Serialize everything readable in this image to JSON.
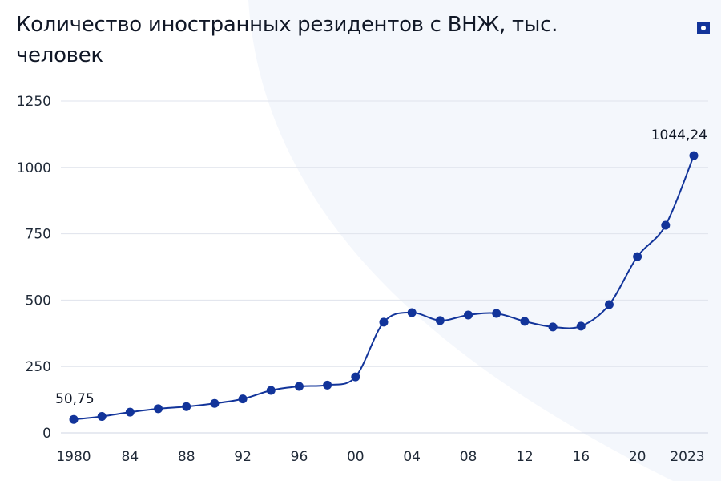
{
  "title": "Количество иностранных резидентов с ВНЖ, тыс. человек",
  "menu_icon": "menu-dot-icon",
  "colors": {
    "line": "#12349a",
    "grid": "#dfe3ec",
    "text": "#111827"
  },
  "chart_data": {
    "type": "line",
    "title": "Количество иностранных резидентов с ВНЖ, тыс. человек",
    "categories": [
      "1980",
      "1982",
      "1984",
      "1986",
      "1988",
      "1990",
      "1992",
      "1994",
      "1996",
      "1998",
      "2000",
      "2002",
      "2004",
      "2006",
      "2008",
      "2010",
      "2012",
      "2014",
      "2016",
      "2018",
      "2020",
      "2022",
      "2023"
    ],
    "values": [
      50.75,
      62,
      78,
      91,
      99,
      111,
      128,
      160,
      175,
      180,
      211,
      417,
      453,
      423,
      444,
      450,
      420,
      399,
      402,
      483,
      664,
      782,
      1044.24
    ],
    "x_tick_labels": [
      {
        "category": "1980",
        "label": "1980"
      },
      {
        "category": "1984",
        "label": "84"
      },
      {
        "category": "1988",
        "label": "88"
      },
      {
        "category": "1992",
        "label": "92"
      },
      {
        "category": "1996",
        "label": "96"
      },
      {
        "category": "2000",
        "label": "00"
      },
      {
        "category": "2004",
        "label": "04"
      },
      {
        "category": "2008",
        "label": "08"
      },
      {
        "category": "2012",
        "label": "12"
      },
      {
        "category": "2016",
        "label": "16"
      },
      {
        "category": "2020",
        "label": "20"
      },
      {
        "category": "2023",
        "label": "2023"
      }
    ],
    "y_ticks": [
      0,
      250,
      500,
      750,
      1000,
      1250
    ],
    "ylim": [
      0,
      1250
    ],
    "grid": true,
    "data_labels": [
      {
        "category": "1980",
        "label": "50,75"
      },
      {
        "category": "2023",
        "label": "1044,24"
      }
    ],
    "xlabel": "",
    "ylabel": ""
  }
}
